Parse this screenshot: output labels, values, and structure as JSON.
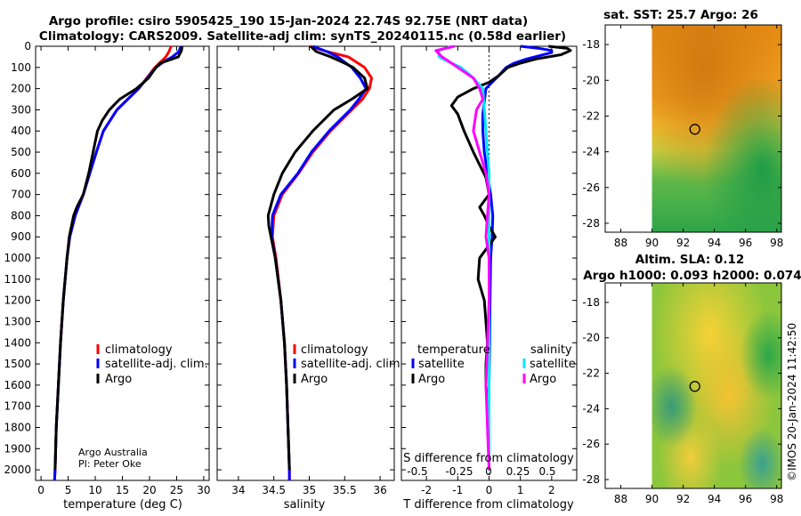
{
  "title_line1": "Argo profile: csiro 5905425_190 15-Jan-2024 22.74S 92.75E (NRT data)",
  "title_line2": "Climatology: CARS2009. Satellite-adj clim: synTS_20240115.nc (0.58d earlier)",
  "colors": {
    "climatology": "#ff0000",
    "satellite_adj": "#0000ff",
    "argo": "#000000",
    "sat_salinity": "#00e5ff",
    "argo_salinity": "#ff00ff"
  },
  "chart_data": [
    {
      "type": "line",
      "id": "temperature",
      "xlabel": "temperature (deg C)",
      "ylabel": "",
      "xlim": [
        -1,
        31
      ],
      "ylim": [
        0,
        2050
      ],
      "xticks": [
        0,
        5,
        10,
        15,
        20,
        25,
        30
      ],
      "yticks": [
        0,
        100,
        200,
        300,
        400,
        500,
        600,
        700,
        800,
        900,
        1000,
        1100,
        1200,
        1300,
        1400,
        1500,
        1600,
        1700,
        1800,
        1900,
        2000
      ],
      "legend": [
        "climatology",
        "satellite-adj. clim.",
        "Argo"
      ],
      "credit_line1": "Argo Australia",
      "credit_line2": "PI: Peter Oke",
      "series": [
        {
          "name": "climatology",
          "color": "#ff0000",
          "depth": [
            0,
            25,
            50,
            75,
            100,
            150,
            200,
            250,
            300,
            400,
            500,
            600,
            700,
            800,
            900,
            1000,
            1200,
            1400,
            1600,
            1800,
            2000,
            2050
          ],
          "values": [
            24.0,
            23.6,
            23.0,
            22.0,
            21.0,
            19.5,
            18.0,
            16.0,
            14.0,
            11.5,
            10.2,
            9.0,
            7.8,
            6.3,
            5.3,
            4.8,
            4.1,
            3.6,
            3.2,
            2.8,
            2.6,
            2.5
          ]
        },
        {
          "name": "satellite-adj. clim.",
          "color": "#0000ff",
          "depth": [
            0,
            25,
            50,
            75,
            100,
            150,
            200,
            250,
            300,
            400,
            500,
            600,
            700,
            800,
            900,
            1000,
            1200,
            1400,
            1600,
            1800,
            2000,
            2050
          ],
          "values": [
            25.8,
            25.4,
            24.2,
            22.5,
            21.2,
            19.6,
            18.0,
            16.0,
            14.0,
            11.5,
            10.2,
            9.0,
            7.8,
            6.3,
            5.3,
            4.8,
            4.1,
            3.6,
            3.2,
            2.8,
            2.6,
            2.5
          ]
        },
        {
          "name": "Argo",
          "color": "#000000",
          "depth": [
            0,
            20,
            50,
            80,
            100,
            150,
            200,
            250,
            300,
            350,
            400,
            500,
            600,
            700,
            760,
            800,
            900,
            1000,
            1200,
            1400,
            1600,
            1800,
            2000
          ],
          "values": [
            26.0,
            25.9,
            25.3,
            22.0,
            21.2,
            19.8,
            17.6,
            14.5,
            12.6,
            11.3,
            10.4,
            9.6,
            8.8,
            7.8,
            6.6,
            6.0,
            5.2,
            4.8,
            4.1,
            3.6,
            3.2,
            2.8,
            2.6
          ]
        }
      ]
    },
    {
      "type": "line",
      "id": "salinity",
      "xlabel": "salinity",
      "xlim": [
        33.7,
        36.2
      ],
      "ylim": [
        0,
        2050
      ],
      "xticks": [
        34,
        34.5,
        35,
        35.5,
        36
      ],
      "legend": [
        "climatology",
        "satellite-adj. clim.",
        "Argo"
      ],
      "series": [
        {
          "name": "climatology",
          "color": "#ff0000",
          "depth": [
            0,
            25,
            50,
            100,
            150,
            200,
            250,
            300,
            400,
            500,
            600,
            700,
            800,
            900,
            1000,
            1200,
            1400,
            1600,
            1800,
            2000,
            2050
          ],
          "values": [
            35.0,
            35.25,
            35.55,
            35.78,
            35.88,
            35.85,
            35.75,
            35.6,
            35.3,
            35.05,
            34.85,
            34.62,
            34.5,
            34.48,
            34.53,
            34.6,
            34.65,
            34.68,
            34.7,
            34.72,
            34.72
          ]
        },
        {
          "name": "satellite-adj. clim.",
          "color": "#0000ff",
          "depth": [
            0,
            25,
            50,
            100,
            150,
            200,
            250,
            300,
            400,
            500,
            600,
            700,
            800,
            900,
            1000,
            1200,
            1400,
            1600,
            1800,
            2000,
            2050
          ],
          "values": [
            35.05,
            35.25,
            35.4,
            35.6,
            35.72,
            35.8,
            35.7,
            35.58,
            35.28,
            35.03,
            34.84,
            34.6,
            34.48,
            34.47,
            34.52,
            34.6,
            34.65,
            34.68,
            34.7,
            34.72,
            34.72
          ]
        },
        {
          "name": "Argo",
          "color": "#000000",
          "depth": [
            0,
            25,
            50,
            80,
            100,
            150,
            200,
            250,
            280,
            300,
            400,
            500,
            600,
            700,
            800,
            850,
            900,
            1000,
            1200,
            1400,
            1600,
            1800,
            2000
          ],
          "values": [
            35.02,
            35.1,
            35.3,
            35.5,
            35.62,
            35.78,
            35.82,
            35.6,
            35.45,
            35.35,
            35.05,
            34.8,
            34.62,
            34.5,
            34.42,
            34.43,
            34.46,
            34.52,
            34.6,
            34.65,
            34.68,
            34.7,
            34.72
          ]
        }
      ]
    },
    {
      "type": "line",
      "id": "difference",
      "xlabel": "T difference from climatology",
      "xlabel_top": "S difference from climatology",
      "xlim": [
        -2.8,
        2.8
      ],
      "ylim": [
        0,
        2050
      ],
      "xticks": [
        -2,
        -1,
        0,
        1,
        2
      ],
      "s_ticklabels": [
        "-0.5",
        "-0.25",
        "0",
        "0.25",
        "0.5"
      ],
      "legend_temperature_title": "temperature",
      "legend_salinity_title": "salinity",
      "legend_labels": {
        "t_sat": "satellite",
        "t_argo": "Argo",
        "s_sat": "satellite",
        "s_argo": "Argo"
      },
      "series": [
        {
          "name": "T satellite",
          "color": "#0000ff",
          "depth": [
            0,
            10,
            20,
            30,
            60,
            80,
            100,
            140,
            170,
            200,
            260,
            320,
            400,
            500,
            600,
            700,
            800,
            900,
            1000,
            1200,
            1400,
            1600,
            1800,
            2000
          ],
          "values": [
            1.0,
            1.6,
            2.0,
            2.0,
            1.2,
            0.8,
            0.55,
            0.3,
            0.1,
            -0.1,
            -0.15,
            -0.2,
            -0.2,
            -0.15,
            -0.05,
            0.05,
            0.12,
            0.1,
            0.05,
            0.03,
            0.02,
            0.0,
            0.0,
            0.0
          ]
        },
        {
          "name": "T Argo",
          "color": "#000000",
          "depth": [
            0,
            10,
            20,
            40,
            60,
            80,
            100,
            140,
            170,
            200,
            240,
            280,
            320,
            400,
            500,
            560,
            620,
            700,
            760,
            800,
            850,
            900,
            1000,
            1100,
            1200,
            1300,
            1400,
            1500,
            1600,
            1700,
            1800,
            1900,
            2000
          ],
          "values": [
            1.9,
            2.5,
            2.6,
            2.3,
            1.5,
            1.0,
            0.6,
            0.3,
            0.0,
            -0.5,
            -1.0,
            -1.2,
            -1.0,
            -0.8,
            -0.5,
            -0.3,
            -0.1,
            0.0,
            -0.3,
            -0.15,
            0.0,
            0.2,
            -0.3,
            -0.35,
            -0.15,
            -0.1,
            -0.05,
            -0.1,
            -0.1,
            -0.05,
            0.0,
            0.0,
            0.0
          ]
        },
        {
          "name": "S satellite",
          "color": "#00e5ff",
          "depth": [
            0,
            20,
            50,
            80,
            100,
            150,
            200,
            300,
            400,
            500,
            600,
            700,
            800,
            1000,
            1200,
            1600,
            2000
          ],
          "values": [
            -1.2,
            -1.6,
            -1.6,
            -1.2,
            -0.9,
            -0.5,
            -0.2,
            -0.15,
            -0.1,
            -0.05,
            0.0,
            0.0,
            0.0,
            0.0,
            0.0,
            0.0,
            0.0
          ]
        },
        {
          "name": "S Argo",
          "color": "#ff00ff",
          "depth": [
            0,
            20,
            50,
            80,
            100,
            150,
            200,
            250,
            300,
            400,
            500,
            600,
            700,
            800,
            900,
            1000,
            1200,
            1400,
            1600,
            1800,
            2000
          ],
          "values": [
            -1.1,
            -1.7,
            -1.5,
            -1.2,
            -1.0,
            -0.5,
            -0.3,
            -0.2,
            -0.4,
            -0.5,
            -0.3,
            -0.1,
            0.0,
            -0.05,
            -0.1,
            0.0,
            0.0,
            -0.05,
            -0.1,
            -0.05,
            0.0
          ]
        }
      ]
    },
    {
      "type": "heatmap",
      "id": "sst_map",
      "title": "sat. SST: 25.7 Argo: 26",
      "xticks": [
        88,
        90,
        92,
        94,
        96,
        98
      ],
      "yticks": [
        -18,
        -20,
        -22,
        -24,
        -26,
        -28
      ],
      "xlim": [
        87,
        98.3
      ],
      "ylim": [
        -28.5,
        -16.9
      ],
      "data_xlim": [
        90,
        98.3
      ],
      "argo_position": {
        "lon": 92.75,
        "lat": -22.74
      }
    },
    {
      "type": "heatmap",
      "id": "sla_map",
      "title": "Altim. SLA: 0.12",
      "subtitle": "Argo h1000: 0.093 h2000: 0.074",
      "xticks": [
        88,
        90,
        92,
        94,
        96,
        98
      ],
      "yticks": [
        -18,
        -20,
        -22,
        -24,
        -26,
        -28
      ],
      "xlim": [
        87,
        98.3
      ],
      "ylim": [
        -28.5,
        -16.9
      ],
      "data_xlim": [
        90,
        98.3
      ],
      "argo_position": {
        "lon": 92.75,
        "lat": -22.74
      }
    }
  ],
  "timestamp": "©IMOS 20-Jan-2024 11:42:50"
}
